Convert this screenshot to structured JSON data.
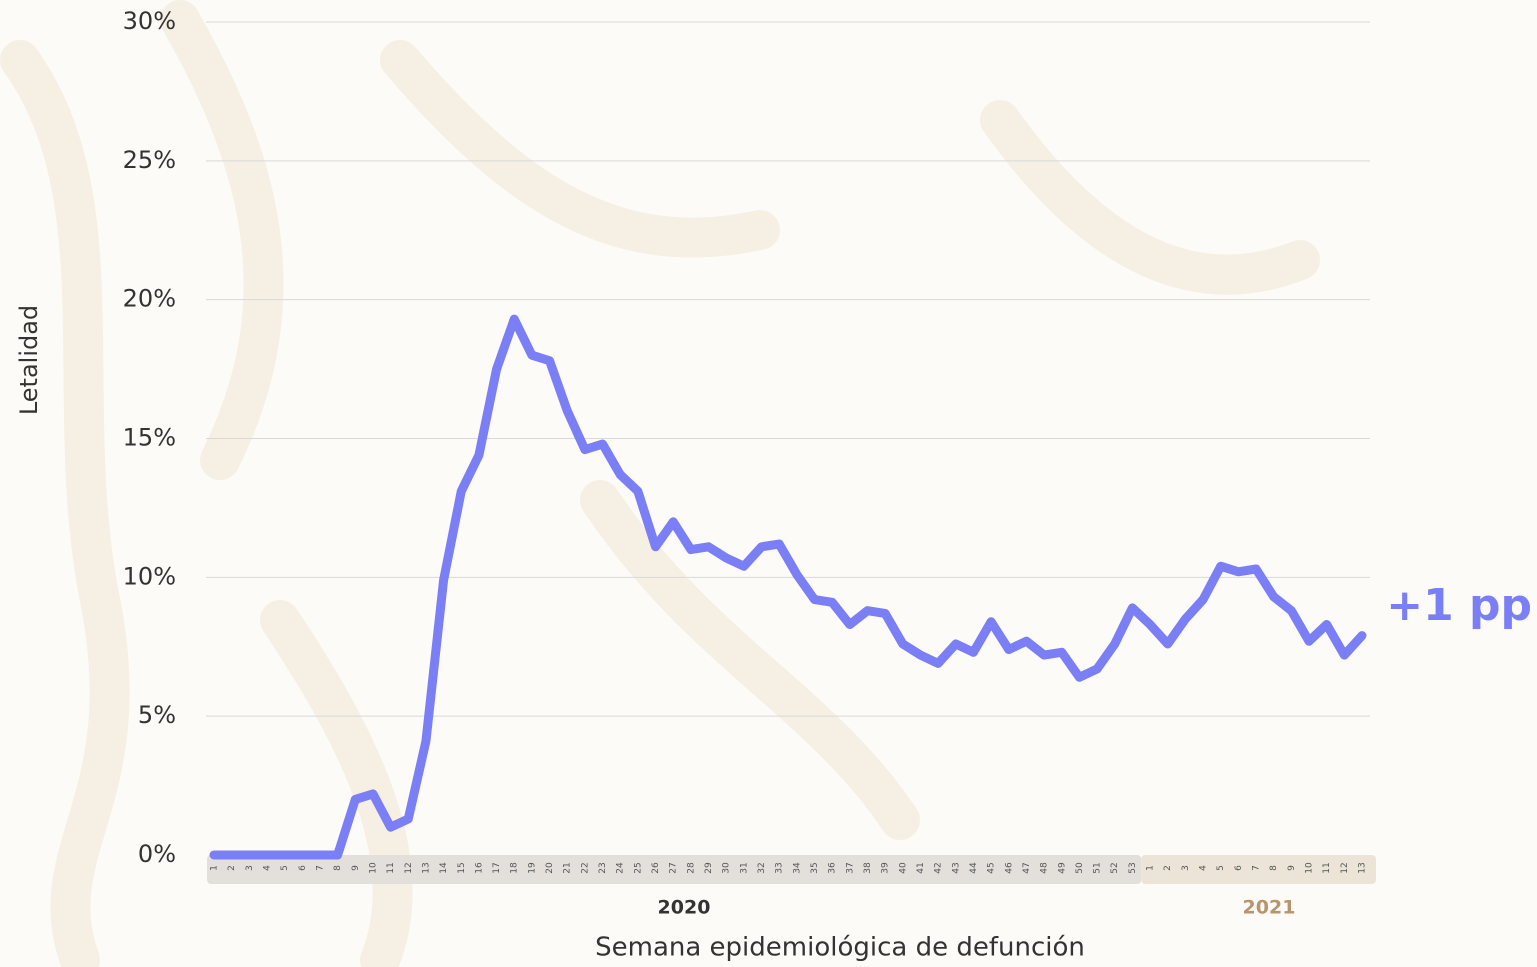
{
  "chart_data": {
    "type": "line",
    "y_label": "Letalidad",
    "x_label": "Semana epidemiológica de defunción",
    "categories": [
      "1",
      "2",
      "3",
      "4",
      "5",
      "6",
      "7",
      "8",
      "9",
      "10",
      "11",
      "12",
      "13",
      "14",
      "15",
      "16",
      "17",
      "18",
      "19",
      "20",
      "21",
      "22",
      "23",
      "24",
      "25",
      "26",
      "27",
      "28",
      "29",
      "30",
      "31",
      "32",
      "33",
      "34",
      "35",
      "36",
      "37",
      "38",
      "39",
      "40",
      "41",
      "42",
      "43",
      "44",
      "45",
      "46",
      "47",
      "48",
      "49",
      "50",
      "51",
      "52",
      "53",
      "1",
      "2",
      "3",
      "4",
      "5",
      "6",
      "7",
      "8",
      "9",
      "10",
      "11",
      "12",
      "13"
    ],
    "year_groups": [
      "2020",
      "2021"
    ],
    "series": [
      {
        "name": "Letalidad",
        "color": "#7b7ff5",
        "values": [
          0,
          0,
          0,
          0,
          0,
          0,
          0,
          0,
          2.0,
          2.2,
          1.0,
          1.3,
          4.1,
          9.9,
          13.1,
          14.4,
          17.5,
          19.3,
          18.0,
          17.8,
          16.0,
          14.6,
          14.8,
          13.7,
          13.1,
          11.1,
          12.0,
          11.0,
          11.1,
          10.7,
          10.4,
          11.1,
          11.2,
          10.1,
          9.2,
          9.1,
          8.3,
          8.8,
          8.7,
          7.6,
          7.2,
          6.9,
          7.6,
          7.3,
          8.4,
          7.4,
          7.7,
          7.2,
          7.3,
          6.4,
          6.7,
          7.6,
          8.9,
          8.3,
          7.6,
          8.5,
          9.2,
          10.4,
          10.2,
          10.3,
          9.3,
          8.8,
          7.7,
          8.3,
          7.2,
          7.9
        ]
      }
    ],
    "annotation": "+1 pp",
    "ylim": [
      0,
      30
    ],
    "yticks": [
      {
        "value": 0,
        "label": "0%"
      },
      {
        "value": 5,
        "label": "5%"
      },
      {
        "value": 10,
        "label": "10%"
      },
      {
        "value": 15,
        "label": "15%"
      },
      {
        "value": 20,
        "label": "20%"
      },
      {
        "value": 25,
        "label": "25%"
      },
      {
        "value": 30,
        "label": "30%"
      }
    ],
    "grid": true
  }
}
